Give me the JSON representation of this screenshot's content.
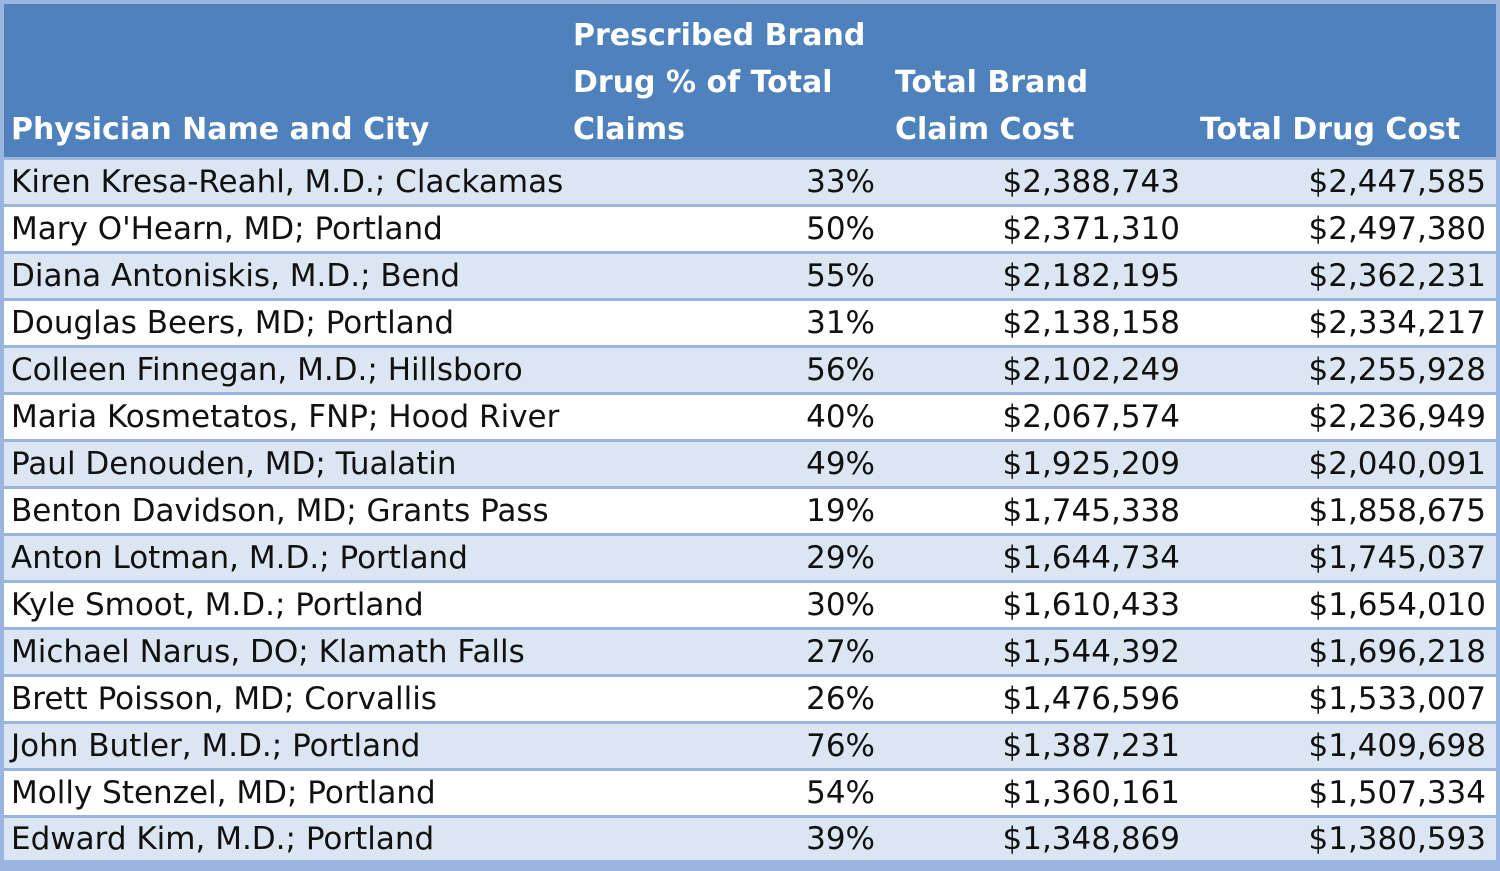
{
  "colors": {
    "header_bg": "#4f81bd",
    "header_text": "#ffffff",
    "band_row": "#dce6f2",
    "plain_row": "#ffffff",
    "grid": "#9ab5df"
  },
  "chart_data": {
    "type": "table",
    "columns": [
      "Physician Name and City",
      "Prescribed Brand Drug % of Total Claims",
      "Total Brand Claim Cost",
      "Total Drug Cost"
    ],
    "rows": [
      [
        "Kiren Kresa-Reahl, M.D.; Clackamas",
        "33%",
        "$2,388,743",
        "$2,447,585"
      ],
      [
        "Mary O'Hearn, MD; Portland",
        "50%",
        "$2,371,310",
        "$2,497,380"
      ],
      [
        "Diana Antoniskis, M.D.; Bend",
        "55%",
        "$2,182,195",
        "$2,362,231"
      ],
      [
        "Douglas Beers, MD; Portland",
        "31%",
        "$2,138,158",
        "$2,334,217"
      ],
      [
        "Colleen Finnegan, M.D.; Hillsboro",
        "56%",
        "$2,102,249",
        "$2,255,928"
      ],
      [
        "Maria Kosmetatos, FNP; Hood River",
        "40%",
        "$2,067,574",
        "$2,236,949"
      ],
      [
        "Paul Denouden, MD; Tualatin",
        "49%",
        "$1,925,209",
        "$2,040,091"
      ],
      [
        "Benton Davidson, MD; Grants Pass",
        "19%",
        "$1,745,338",
        "$1,858,675"
      ],
      [
        "Anton Lotman, M.D.; Portland",
        "29%",
        "$1,644,734",
        "$1,745,037"
      ],
      [
        "Kyle Smoot, M.D.; Portland",
        "30%",
        "$1,610,433",
        "$1,654,010"
      ],
      [
        "Michael Narus, DO; Klamath Falls",
        "27%",
        "$1,544,392",
        "$1,696,218"
      ],
      [
        "Brett Poisson, MD; Corvallis",
        "26%",
        "$1,476,596",
        "$1,533,007"
      ],
      [
        "John Butler, M.D.; Portland",
        "76%",
        "$1,387,231",
        "$1,409,698"
      ],
      [
        "Molly Stenzel, MD; Portland",
        "54%",
        "$1,360,161",
        "$1,507,334"
      ],
      [
        "Edward Kim, M.D.; Portland",
        "39%",
        "$1,348,869",
        "$1,380,593"
      ]
    ]
  }
}
